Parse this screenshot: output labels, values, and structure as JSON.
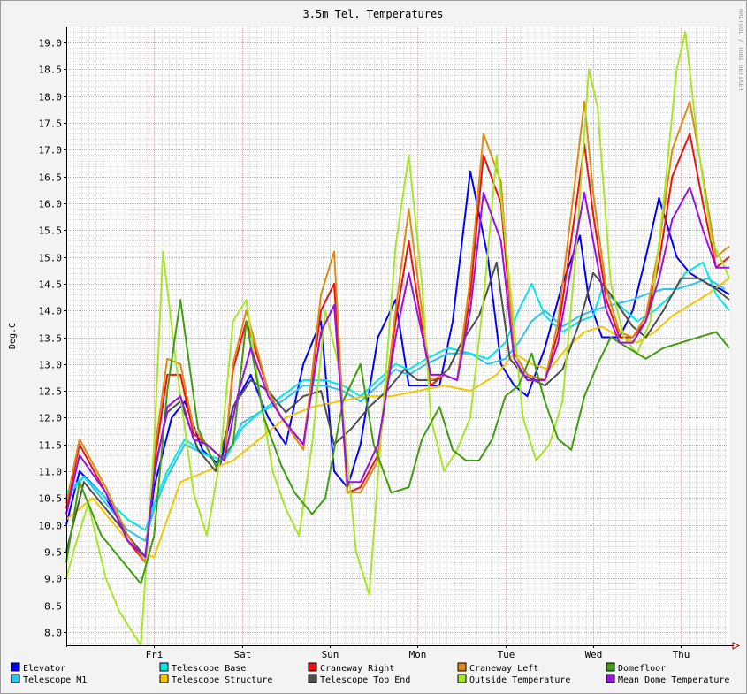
{
  "chart_data": {
    "type": "line",
    "title": "3.5m Tel. Temperatures",
    "ylabel": "Deg.C",
    "watermark": "RRDTOOL / TOBI OETIKER",
    "ylim": [
      7.75,
      19.3
    ],
    "xlim": [
      0,
      7.55
    ],
    "y_ticks": [
      8.0,
      8.5,
      9.0,
      9.5,
      10.0,
      10.5,
      11.0,
      11.5,
      12.0,
      12.5,
      13.0,
      13.5,
      14.0,
      14.5,
      15.0,
      15.5,
      16.0,
      16.5,
      17.0,
      17.5,
      18.0,
      18.5,
      19.0
    ],
    "x_ticks": [
      {
        "x": 1,
        "label": "Fri"
      },
      {
        "x": 2,
        "label": "Sat"
      },
      {
        "x": 3,
        "label": "Sun"
      },
      {
        "x": 4,
        "label": "Mon"
      },
      {
        "x": 5,
        "label": "Tue"
      },
      {
        "x": 6,
        "label": "Wed"
      },
      {
        "x": 7,
        "label": "Thu"
      }
    ],
    "grid": true,
    "legend_position": "bottom",
    "series": [
      {
        "name": "Elevator",
        "color": "#0000ff",
        "x": [
          0,
          0.15,
          0.45,
          0.7,
          0.9,
          1.0,
          1.2,
          1.35,
          1.55,
          1.75,
          1.9,
          2.1,
          2.3,
          2.5,
          2.7,
          2.9,
          3.05,
          3.2,
          3.35,
          3.55,
          3.75,
          3.9,
          4.1,
          4.25,
          4.4,
          4.6,
          4.8,
          4.95,
          5.1,
          5.25,
          5.45,
          5.65,
          5.85,
          5.95,
          6.1,
          6.3,
          6.45,
          6.6,
          6.75,
          6.95,
          7.1,
          7.3,
          7.45,
          7.55
        ],
        "y": [
          10.0,
          11.0,
          10.5,
          9.8,
          9.4,
          10.7,
          12.0,
          12.3,
          11.4,
          11.1,
          12.2,
          12.8,
          12.0,
          11.5,
          13.0,
          13.8,
          11.0,
          10.7,
          11.5,
          13.5,
          14.2,
          12.6,
          12.6,
          12.6,
          13.8,
          16.6,
          15.0,
          13.0,
          12.6,
          12.4,
          13.3,
          14.5,
          15.4,
          14.2,
          13.5,
          13.5,
          14.0,
          15.0,
          16.1,
          15.0,
          14.7,
          14.5,
          14.4,
          14.3
        ]
      },
      {
        "name": "Telescope M1",
        "color": "#2ec3ea",
        "x": [
          0,
          0.2,
          0.45,
          0.7,
          0.9,
          1.0,
          1.15,
          1.35,
          1.6,
          1.8,
          2.0,
          2.2,
          2.45,
          2.7,
          2.95,
          3.15,
          3.35,
          3.55,
          3.75,
          3.9,
          4.1,
          4.35,
          4.6,
          4.8,
          5.0,
          5.15,
          5.3,
          5.45,
          5.65,
          5.85,
          6.0,
          6.2,
          6.45,
          6.6,
          6.8,
          6.95,
          7.15,
          7.3,
          7.5
        ],
        "y": [
          10.5,
          10.9,
          10.4,
          9.9,
          9.7,
          10.3,
          10.9,
          11.5,
          11.3,
          11.2,
          11.9,
          12.1,
          12.3,
          12.6,
          12.6,
          12.5,
          12.3,
          12.6,
          12.9,
          12.8,
          13.0,
          13.2,
          13.2,
          13.0,
          13.1,
          13.4,
          13.8,
          14.0,
          13.7,
          13.9,
          14.0,
          14.1,
          14.2,
          14.3,
          14.4,
          14.4,
          14.5,
          14.6,
          14.4
        ]
      },
      {
        "name": "Telescope Base",
        "color": "#00e8e8",
        "x": [
          0,
          0.2,
          0.45,
          0.7,
          0.9,
          1.0,
          1.15,
          1.35,
          1.6,
          1.8,
          2.0,
          2.2,
          2.45,
          2.7,
          2.95,
          3.15,
          3.35,
          3.55,
          3.75,
          3.9,
          4.1,
          4.35,
          4.6,
          4.8,
          5.0,
          5.15,
          5.3,
          5.45,
          5.65,
          5.85,
          6.0,
          6.1,
          6.3,
          6.5,
          6.7,
          6.9,
          7.05,
          7.25,
          7.4,
          7.55
        ],
        "y": [
          10.6,
          10.9,
          10.5,
          10.1,
          9.9,
          10.4,
          11.0,
          11.6,
          11.3,
          11.2,
          11.8,
          12.1,
          12.4,
          12.7,
          12.7,
          12.6,
          12.4,
          12.7,
          13.0,
          12.9,
          13.1,
          13.3,
          13.2,
          13.1,
          13.4,
          14.0,
          14.5,
          13.9,
          13.6,
          13.8,
          13.9,
          14.4,
          14.1,
          13.8,
          14.0,
          14.3,
          14.7,
          14.9,
          14.3,
          14.0
        ]
      },
      {
        "name": "Telescope Structure",
        "color": "#f6c600",
        "x": [
          0,
          0.3,
          0.6,
          0.8,
          1.0,
          1.3,
          1.6,
          1.9,
          2.2,
          2.5,
          2.8,
          3.1,
          3.4,
          3.7,
          4.0,
          4.3,
          4.6,
          4.9,
          5.1,
          5.3,
          5.5,
          5.7,
          5.9,
          6.1,
          6.3,
          6.5,
          6.7,
          6.9,
          7.1,
          7.3,
          7.55
        ],
        "y": [
          10.1,
          10.5,
          9.9,
          9.5,
          9.4,
          10.8,
          11.0,
          11.2,
          11.6,
          12.0,
          12.2,
          12.3,
          12.4,
          12.4,
          12.5,
          12.6,
          12.5,
          12.8,
          13.2,
          13.0,
          12.9,
          13.3,
          13.6,
          13.7,
          13.5,
          13.4,
          13.6,
          13.9,
          14.1,
          14.3,
          14.6
        ]
      },
      {
        "name": "Craneway Right",
        "color": "#ee1111",
        "x": [
          0,
          0.15,
          0.45,
          0.7,
          0.9,
          1.0,
          1.15,
          1.3,
          1.45,
          1.6,
          1.8,
          1.9,
          2.05,
          2.3,
          2.45,
          2.7,
          2.9,
          3.05,
          3.2,
          3.35,
          3.55,
          3.75,
          3.9,
          4.15,
          4.3,
          4.45,
          4.6,
          4.75,
          4.95,
          5.1,
          5.25,
          5.45,
          5.6,
          5.8,
          5.9,
          6.0,
          6.15,
          6.3,
          6.45,
          6.6,
          6.75,
          6.9,
          7.1,
          7.25,
          7.4,
          7.55
        ],
        "y": [
          10.3,
          11.5,
          10.6,
          9.7,
          9.3,
          11.1,
          12.8,
          12.8,
          11.7,
          11.5,
          11.2,
          12.9,
          13.8,
          12.5,
          12.0,
          11.5,
          14.0,
          14.5,
          10.6,
          10.7,
          11.3,
          13.8,
          15.3,
          12.6,
          12.8,
          12.7,
          14.3,
          16.9,
          16.0,
          13.2,
          12.8,
          12.7,
          13.6,
          15.9,
          17.1,
          15.8,
          14.2,
          13.5,
          13.5,
          13.8,
          14.9,
          16.5,
          17.3,
          16.0,
          14.8,
          15.0
        ]
      },
      {
        "name": "Telescope Top End",
        "color": "#4f4f4f",
        "x": [
          0,
          0.2,
          0.45,
          0.7,
          0.9,
          1.0,
          1.15,
          1.3,
          1.5,
          1.7,
          1.9,
          2.1,
          2.3,
          2.5,
          2.7,
          2.9,
          3.05,
          3.25,
          3.45,
          3.65,
          3.85,
          4.0,
          4.2,
          4.35,
          4.5,
          4.7,
          4.9,
          5.05,
          5.2,
          5.45,
          5.65,
          5.85,
          6.0,
          6.2,
          6.45,
          6.6,
          6.8,
          7.0,
          7.2,
          7.4,
          7.55
        ],
        "y": [
          9.5,
          10.8,
          10.3,
          9.8,
          9.4,
          11.0,
          12.1,
          12.3,
          11.4,
          11.0,
          12.2,
          12.7,
          12.5,
          12.1,
          12.4,
          12.5,
          11.5,
          11.8,
          12.2,
          12.5,
          12.9,
          12.7,
          12.7,
          12.9,
          13.4,
          13.9,
          14.9,
          13.1,
          12.8,
          12.6,
          12.9,
          13.8,
          14.7,
          14.3,
          13.7,
          13.5,
          14.0,
          14.6,
          14.6,
          14.4,
          14.2
        ]
      },
      {
        "name": "Craneway Left",
        "color": "#df8a15",
        "x": [
          0,
          0.15,
          0.45,
          0.7,
          0.9,
          1.0,
          1.15,
          1.3,
          1.45,
          1.6,
          1.8,
          1.9,
          2.05,
          2.3,
          2.45,
          2.7,
          2.9,
          3.05,
          3.2,
          3.35,
          3.55,
          3.75,
          3.9,
          4.15,
          4.3,
          4.45,
          4.6,
          4.75,
          4.95,
          5.1,
          5.25,
          5.45,
          5.6,
          5.8,
          5.9,
          6.0,
          6.15,
          6.3,
          6.45,
          6.6,
          6.75,
          6.9,
          7.1,
          7.25,
          7.4,
          7.55
        ],
        "y": [
          10.4,
          11.6,
          10.7,
          9.8,
          9.3,
          11.3,
          13.1,
          13.0,
          11.8,
          11.5,
          11.2,
          13.0,
          14.0,
          12.5,
          12.0,
          11.4,
          14.3,
          15.1,
          10.6,
          10.6,
          11.2,
          14.0,
          15.9,
          12.7,
          12.8,
          12.7,
          14.6,
          17.3,
          16.4,
          13.2,
          12.8,
          12.7,
          13.8,
          16.5,
          17.9,
          16.2,
          14.4,
          13.6,
          13.5,
          13.9,
          15.2,
          17.0,
          17.9,
          16.5,
          15.0,
          15.2
        ]
      },
      {
        "name": "Outside Temperature",
        "color": "#a8e625",
        "x": [
          0,
          0.1,
          0.25,
          0.45,
          0.6,
          0.75,
          0.85,
          1.0,
          1.1,
          1.25,
          1.45,
          1.6,
          1.75,
          1.9,
          2.05,
          2.2,
          2.35,
          2.5,
          2.65,
          2.8,
          2.95,
          3.1,
          3.3,
          3.45,
          3.6,
          3.75,
          3.9,
          4.05,
          4.15,
          4.3,
          4.45,
          4.6,
          4.75,
          4.9,
          5.05,
          5.2,
          5.35,
          5.5,
          5.65,
          5.8,
          5.95,
          6.05,
          6.2,
          6.35,
          6.5,
          6.65,
          6.8,
          6.95,
          7.05,
          7.2,
          7.35,
          7.5,
          7.55
        ],
        "y": [
          9.0,
          9.6,
          10.4,
          9.0,
          8.4,
          8.0,
          7.75,
          11.5,
          15.1,
          13.0,
          10.6,
          9.8,
          11.2,
          13.8,
          14.2,
          12.5,
          11.0,
          10.3,
          9.8,
          11.5,
          14.0,
          13.0,
          9.5,
          8.7,
          12.0,
          15.2,
          16.9,
          14.5,
          12.0,
          11.0,
          11.4,
          12.0,
          14.2,
          16.9,
          14.5,
          12.0,
          11.2,
          11.5,
          12.3,
          15.0,
          18.5,
          17.8,
          14.5,
          13.5,
          13.2,
          13.8,
          16.0,
          18.5,
          19.2,
          17.0,
          15.3,
          14.8,
          14.6
        ]
      },
      {
        "name": "Domefloor",
        "color": "#3e9e0e",
        "x": [
          0,
          0.15,
          0.4,
          0.65,
          0.85,
          1.0,
          1.15,
          1.3,
          1.5,
          1.7,
          1.9,
          2.05,
          2.25,
          2.45,
          2.6,
          2.8,
          2.95,
          3.15,
          3.35,
          3.5,
          3.7,
          3.9,
          4.05,
          4.25,
          4.4,
          4.55,
          4.7,
          4.85,
          5.0,
          5.15,
          5.3,
          5.45,
          5.6,
          5.75,
          5.9,
          6.05,
          6.2,
          6.4,
          6.6,
          6.8,
          7.0,
          7.2,
          7.4,
          7.55
        ],
        "y": [
          9.3,
          10.8,
          9.8,
          9.3,
          8.9,
          9.8,
          12.5,
          14.2,
          11.8,
          11.1,
          11.5,
          13.8,
          12.0,
          11.1,
          10.6,
          10.2,
          10.5,
          12.3,
          13.0,
          11.5,
          10.6,
          10.7,
          11.6,
          12.2,
          11.4,
          11.2,
          11.2,
          11.6,
          12.4,
          12.6,
          13.2,
          12.3,
          11.6,
          11.4,
          12.4,
          13.0,
          13.5,
          13.3,
          13.1,
          13.3,
          13.4,
          13.5,
          13.6,
          13.3
        ]
      },
      {
        "name": "Mean Dome Temperature",
        "color": "#9a10e6",
        "x": [
          0,
          0.15,
          0.45,
          0.7,
          0.9,
          1.0,
          1.15,
          1.3,
          1.45,
          1.6,
          1.8,
          1.95,
          2.1,
          2.3,
          2.45,
          2.7,
          2.9,
          3.05,
          3.2,
          3.35,
          3.55,
          3.75,
          3.9,
          4.15,
          4.3,
          4.45,
          4.6,
          4.75,
          4.95,
          5.1,
          5.25,
          5.45,
          5.6,
          5.8,
          5.9,
          6.0,
          6.15,
          6.3,
          6.45,
          6.6,
          6.75,
          6.9,
          7.1,
          7.25,
          7.4,
          7.55
        ],
        "y": [
          10.2,
          11.3,
          10.6,
          9.7,
          9.4,
          10.9,
          12.2,
          12.4,
          11.6,
          11.5,
          11.2,
          12.4,
          13.3,
          12.4,
          12.0,
          11.5,
          13.6,
          14.1,
          10.8,
          10.8,
          11.5,
          13.5,
          14.7,
          12.8,
          12.8,
          12.7,
          14.0,
          16.2,
          15.3,
          13.1,
          12.7,
          12.7,
          13.4,
          15.3,
          16.2,
          15.3,
          14.0,
          13.4,
          13.4,
          13.8,
          14.6,
          15.7,
          16.3,
          15.5,
          14.8,
          14.8
        ]
      }
    ]
  }
}
